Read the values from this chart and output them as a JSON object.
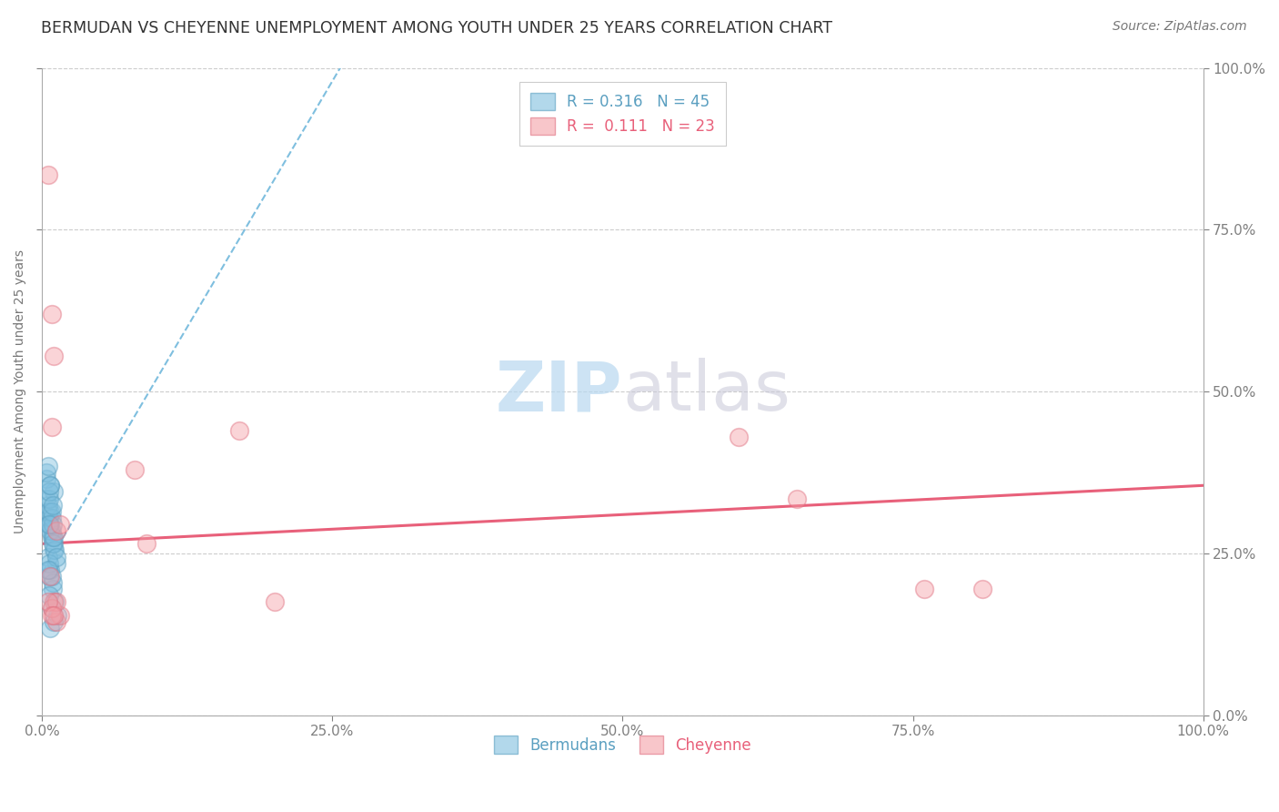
{
  "title": "BERMUDAN VS CHEYENNE UNEMPLOYMENT AMONG YOUTH UNDER 25 YEARS CORRELATION CHART",
  "source": "Source: ZipAtlas.com",
  "ylabel": "Unemployment Among Youth under 25 years",
  "watermark_zip": "ZIP",
  "watermark_atlas": "atlas",
  "xlim": [
    0.0,
    1.0
  ],
  "ylim": [
    0.0,
    1.0
  ],
  "xticks": [
    0.0,
    0.25,
    0.5,
    0.75,
    1.0
  ],
  "yticks": [
    0.0,
    0.25,
    0.5,
    0.75,
    1.0
  ],
  "xtick_labels": [
    "0.0%",
    "25.0%",
    "50.0%",
    "75.0%",
    "100.0%"
  ],
  "ytick_labels": [
    "0.0%",
    "25.0%",
    "50.0%",
    "75.0%",
    "100.0%"
  ],
  "blue_color": "#7fbfdf",
  "pink_color": "#f4a0a8",
  "blue_edge_color": "#5a9fc0",
  "pink_edge_color": "#e07080",
  "blue_line_color": "#7fbfdf",
  "pink_line_color": "#e8607a",
  "legend_r_blue": "0.316",
  "legend_n_blue": "45",
  "legend_r_pink": "0.111",
  "legend_n_pink": "23",
  "series_blue_label": "Bermudans",
  "series_pink_label": "Cheyenne",
  "grid_color": "#cccccc",
  "background_color": "#ffffff",
  "title_color": "#333333",
  "axis_label_color": "#777777",
  "tick_color": "#5a9fc0",
  "pink_tick_color": "#e07080",
  "blue_scatter_x": [
    0.005,
    0.007,
    0.008,
    0.01,
    0.012,
    0.006,
    0.009,
    0.011,
    0.013,
    0.007,
    0.004,
    0.006,
    0.008,
    0.01,
    0.005,
    0.007,
    0.009,
    0.006,
    0.008,
    0.01,
    0.005,
    0.007,
    0.009,
    0.011,
    0.006,
    0.008,
    0.01,
    0.005,
    0.007,
    0.009,
    0.004,
    0.006,
    0.008,
    0.01,
    0.012,
    0.005,
    0.007,
    0.009,
    0.004,
    0.006,
    0.008,
    0.005,
    0.007,
    0.009,
    0.006
  ],
  "blue_scatter_y": [
    0.295,
    0.315,
    0.275,
    0.255,
    0.235,
    0.215,
    0.195,
    0.175,
    0.155,
    0.135,
    0.335,
    0.305,
    0.285,
    0.265,
    0.245,
    0.225,
    0.205,
    0.185,
    0.165,
    0.145,
    0.325,
    0.295,
    0.275,
    0.255,
    0.235,
    0.215,
    0.345,
    0.315,
    0.285,
    0.265,
    0.365,
    0.335,
    0.305,
    0.275,
    0.245,
    0.225,
    0.355,
    0.295,
    0.375,
    0.345,
    0.315,
    0.385,
    0.355,
    0.325,
    0.295
  ],
  "pink_scatter_x": [
    0.005,
    0.008,
    0.01,
    0.008,
    0.012,
    0.015,
    0.08,
    0.09,
    0.17,
    0.2,
    0.6,
    0.65,
    0.76,
    0.81,
    0.007,
    0.01,
    0.012,
    0.015,
    0.008,
    0.012,
    0.005,
    0.008,
    0.01
  ],
  "pink_scatter_y": [
    0.835,
    0.62,
    0.555,
    0.445,
    0.285,
    0.295,
    0.38,
    0.265,
    0.44,
    0.175,
    0.43,
    0.335,
    0.195,
    0.195,
    0.215,
    0.175,
    0.145,
    0.155,
    0.165,
    0.175,
    0.175,
    0.155,
    0.155
  ],
  "blue_trend_x": [
    0.0,
    0.26
  ],
  "blue_trend_y": [
    0.22,
    1.01
  ],
  "pink_trend_x": [
    0.0,
    1.0
  ],
  "pink_trend_y": [
    0.265,
    0.355
  ],
  "title_fontsize": 12.5,
  "source_fontsize": 10,
  "watermark_fontsize": 55,
  "legend_fontsize": 12,
  "axis_label_fontsize": 10,
  "tick_fontsize": 11
}
